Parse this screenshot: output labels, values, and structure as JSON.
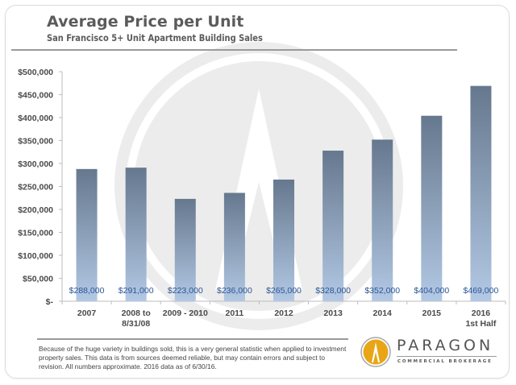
{
  "header": {
    "title": "Average Price per Unit",
    "subtitle": "San Francisco 5+ Unit Apartment Building Sales"
  },
  "footer": {
    "disclaimer": "Because of the huge variety in buildings sold, this is a very general statistic when applied to investment property sales. This data is from sources deemed reliable, but may contain errors and subject to revision. All numbers approximate.  2016 data as of 6/30/16."
  },
  "logo": {
    "brand": "PARAGON",
    "tagline": "COMMERCIAL BROKERAGE",
    "icon": "paragon-peak-logo-icon",
    "color": "#E8A617"
  },
  "watermark": {
    "icon": "paragon-peak-watermark-icon"
  },
  "colors": {
    "bar_top": "#66788E",
    "bar_bottom": "#B2C8E4",
    "data_label": "#2B5594",
    "axis_text": "#4a4a4a"
  },
  "chart_data": {
    "type": "bar",
    "title": "Average Price per Unit",
    "subtitle": "San Francisco 5+ Unit Apartment Building Sales",
    "xlabel": "",
    "ylabel": "",
    "categories": [
      [
        "2007"
      ],
      [
        "2008 to",
        "8/31/08"
      ],
      [
        "2009 - 2010"
      ],
      [
        "2011"
      ],
      [
        "2012"
      ],
      [
        "2013"
      ],
      [
        "2014"
      ],
      [
        "2015"
      ],
      [
        "2016",
        "1st Half"
      ]
    ],
    "values": [
      288000,
      291000,
      223000,
      236000,
      265000,
      328000,
      352000,
      404000,
      469000
    ],
    "data_labels": [
      "$288,000",
      "$291,000",
      "$223,000",
      "$236,000",
      "$265,000",
      "$328,000",
      "$352,000",
      "$404,000",
      "$469,000"
    ],
    "ylim": [
      0,
      500000
    ],
    "yticks": [
      0,
      50000,
      100000,
      150000,
      200000,
      250000,
      300000,
      350000,
      400000,
      450000,
      500000
    ],
    "ytick_labels": [
      "$-",
      "$50,000",
      "$100,000",
      "$150,000",
      "$200,000",
      "$250,000",
      "$300,000",
      "$350,000",
      "$400,000",
      "$450,000",
      "$500,000"
    ],
    "grid": false,
    "legend": "none"
  }
}
